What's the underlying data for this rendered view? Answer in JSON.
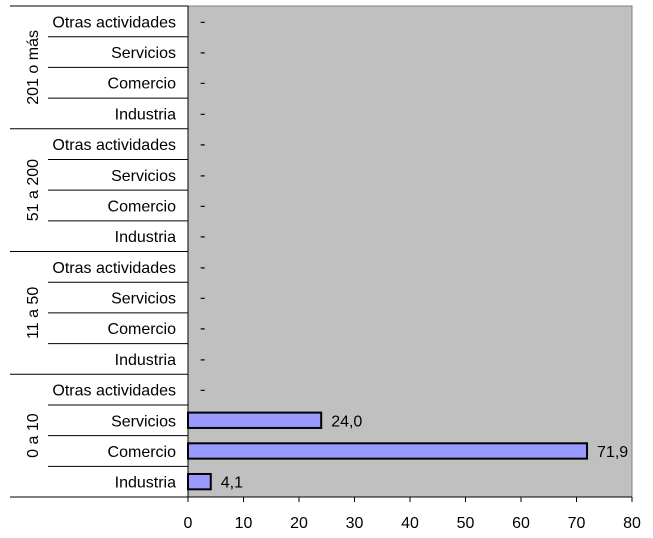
{
  "chart_data": {
    "type": "bar",
    "orientation": "horizontal",
    "groups": [
      {
        "label": "0 a 10",
        "categories": [
          {
            "label": "Industria",
            "value": 4.1,
            "text": "4,1"
          },
          {
            "label": "Comercio",
            "value": 71.9,
            "text": "71,9"
          },
          {
            "label": "Servicios",
            "value": 24.0,
            "text": "24,0"
          },
          {
            "label": "Otras actividades",
            "value": null,
            "text": "-"
          }
        ]
      },
      {
        "label": "11 a 50",
        "categories": [
          {
            "label": "Industria",
            "value": null,
            "text": "-"
          },
          {
            "label": "Comercio",
            "value": null,
            "text": "-"
          },
          {
            "label": "Servicios",
            "value": null,
            "text": "-"
          },
          {
            "label": "Otras actividades",
            "value": null,
            "text": "-"
          }
        ]
      },
      {
        "label": "51 a 200",
        "categories": [
          {
            "label": "Industria",
            "value": null,
            "text": "-"
          },
          {
            "label": "Comercio",
            "value": null,
            "text": "-"
          },
          {
            "label": "Servicios",
            "value": null,
            "text": "-"
          },
          {
            "label": "Otras actividades",
            "value": null,
            "text": "-"
          }
        ]
      },
      {
        "label": "201 o más",
        "categories": [
          {
            "label": "Industria",
            "value": null,
            "text": "-"
          },
          {
            "label": "Comercio",
            "value": null,
            "text": "-"
          },
          {
            "label": "Servicios",
            "value": null,
            "text": "-"
          },
          {
            "label": "Otras actividades",
            "value": null,
            "text": "-"
          }
        ]
      }
    ],
    "xlim": [
      0,
      80
    ],
    "xticks": [
      "0",
      "10",
      "20",
      "30",
      "40",
      "50",
      "60",
      "70",
      "80"
    ],
    "colors": {
      "plot_bg": "#c0c0c0",
      "bar_fill": "#9999ff",
      "bar_stroke": "#000000",
      "axis": "#000000"
    },
    "grid": false,
    "legend": "none"
  }
}
